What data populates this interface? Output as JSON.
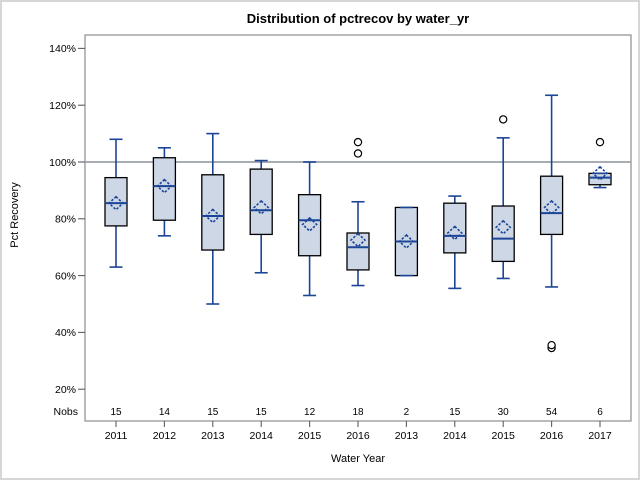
{
  "chart_data": {
    "type": "boxplot",
    "title": "Distribution of pctrecov by water_yr",
    "xlabel": "Water Year",
    "ylabel": "Pct Recovery",
    "ylim": [
      10,
      148
    ],
    "yticks": [
      20,
      40,
      60,
      80,
      100,
      120,
      140
    ],
    "ytick_suffix": "%",
    "reference_line": 100,
    "grid": false,
    "legend": "none",
    "nobs_label": "Nobs",
    "categories": [
      "2011",
      "2012",
      "2013",
      "2014",
      "2015",
      "2016",
      "2013",
      "2014",
      "2015",
      "2016",
      "2017"
    ],
    "nobs": [
      15,
      14,
      15,
      15,
      12,
      18,
      2,
      15,
      30,
      54,
      6
    ],
    "series": [
      {
        "category": "2011",
        "nobs": 15,
        "whisker_low": 63,
        "q1": 77.5,
        "median": 85.5,
        "q3": 94.5,
        "whisker_high": 108,
        "mean": 85.5,
        "outliers": []
      },
      {
        "category": "2012",
        "nobs": 14,
        "whisker_low": 74,
        "q1": 79.5,
        "median": 91.5,
        "q3": 101.5,
        "whisker_high": 105,
        "mean": 91.5,
        "outliers": []
      },
      {
        "category": "2013",
        "nobs": 15,
        "whisker_low": 50,
        "q1": 69,
        "median": 81,
        "q3": 95.5,
        "whisker_high": 110,
        "mean": 81,
        "outliers": []
      },
      {
        "category": "2014",
        "nobs": 15,
        "whisker_low": 61,
        "q1": 74.5,
        "median": 83,
        "q3": 97.5,
        "whisker_high": 100.5,
        "mean": 84,
        "outliers": []
      },
      {
        "category": "2015",
        "nobs": 12,
        "whisker_low": 53,
        "q1": 67,
        "median": 79.5,
        "q3": 88.5,
        "whisker_high": 100,
        "mean": 78,
        "outliers": []
      },
      {
        "category": "2016",
        "nobs": 18,
        "whisker_low": 56.5,
        "q1": 62,
        "median": 70,
        "q3": 75,
        "whisker_high": 86,
        "mean": 72.5,
        "outliers": [
          103,
          107
        ]
      },
      {
        "category": "2013",
        "nobs": 2,
        "whisker_low": 60,
        "q1": 60,
        "median": 72,
        "q3": 84,
        "whisker_high": 84,
        "mean": 72,
        "outliers": []
      },
      {
        "category": "2014",
        "nobs": 15,
        "whisker_low": 55.5,
        "q1": 68,
        "median": 74,
        "q3": 85.5,
        "whisker_high": 88,
        "mean": 75,
        "outliers": []
      },
      {
        "category": "2015",
        "nobs": 30,
        "whisker_low": 59,
        "q1": 65,
        "median": 73,
        "q3": 84.5,
        "whisker_high": 108.5,
        "mean": 77,
        "outliers": [
          115
        ]
      },
      {
        "category": "2016",
        "nobs": 54,
        "whisker_low": 56,
        "q1": 74.5,
        "median": 82,
        "q3": 95,
        "whisker_high": 123.5,
        "mean": 84,
        "outliers": [
          34.5,
          35.5
        ]
      },
      {
        "category": "2017",
        "nobs": 6,
        "whisker_low": 91,
        "q1": 92,
        "median": 94.5,
        "q3": 96,
        "whisker_high": 96,
        "mean": 96,
        "outliers": [
          107
        ]
      }
    ],
    "colors": {
      "box_fill": "#cdd7e5",
      "box_border": "#000000",
      "whisker": "#1c4598",
      "median": "#1c4598",
      "mean_marker": "#1c4598",
      "outlier_stroke": "#000000",
      "reference_line": "#9ba1a8",
      "frame": "#8d8d8d",
      "tick": "#5f5f5f",
      "outer_border": "#d6d6d6"
    }
  }
}
